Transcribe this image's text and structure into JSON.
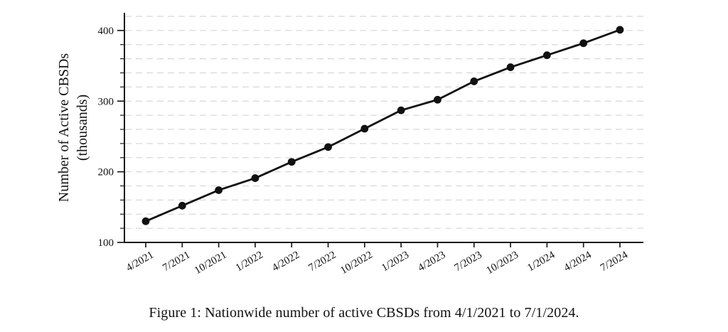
{
  "figure": {
    "caption": "Figure 1: Nationwide number of active CBSDs from 4/1/2021 to 7/1/2024."
  },
  "chart_data": {
    "type": "line",
    "title": "",
    "x": [
      "4/2021",
      "7/2021",
      "10/2021",
      "1/2022",
      "4/2022",
      "7/2022",
      "10/2022",
      "1/2023",
      "4/2023",
      "7/2023",
      "10/2023",
      "1/2024",
      "4/2024",
      "7/2024"
    ],
    "series": [
      {
        "name": "Active CBSDs (thousands)",
        "values": [
          130,
          152,
          174,
          191,
          214,
          235,
          261,
          287,
          302,
          328,
          348,
          365,
          382,
          401
        ]
      }
    ],
    "xlabel": "",
    "ylabel_lines": [
      "Number of Active CBSDs",
      "(thousands)"
    ],
    "ylim": [
      100,
      420
    ],
    "yticks_major": [
      100,
      200,
      300,
      400
    ],
    "ytick_step_minor": 20,
    "grid": "horizontal-dashed-every-20",
    "legend": "none",
    "marker": "filled-circle",
    "x_tick_rotation_deg": -30,
    "colors": {
      "line": "#111111",
      "marker": "#111111",
      "axis": "#1a1a1a",
      "gridline": "#d8d8d8",
      "text": "#111111",
      "background": "#ffffff"
    }
  }
}
